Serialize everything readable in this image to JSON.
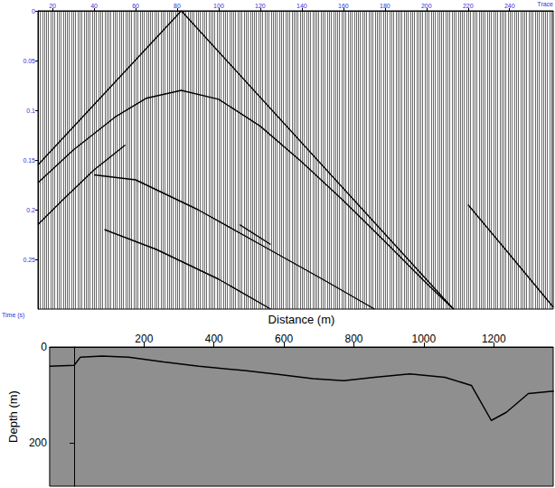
{
  "chart_data": [
    {
      "type": "line",
      "x_label": "Trace",
      "y_label": "Time (s)",
      "xlim": [
        13,
        261
      ],
      "xticks": [
        20,
        40,
        60,
        80,
        100,
        120,
        140,
        160,
        180,
        200,
        220,
        240
      ],
      "ylim": [
        0.3,
        0
      ],
      "yticks": [
        0,
        0.05,
        0.1,
        0.15,
        0.2,
        0.25
      ],
      "series": [
        {
          "color": "#000000",
          "x": [
            13,
            82,
            213
          ],
          "values": [
            0.155,
            0,
            0.3
          ]
        },
        {
          "color": "#000000",
          "x": [
            13,
            30,
            50,
            65,
            82,
            100,
            120,
            140,
            160,
            180,
            200,
            213
          ],
          "values": [
            0.173,
            0.14,
            0.107,
            0.088,
            0.08,
            0.089,
            0.116,
            0.152,
            0.191,
            0.232,
            0.274,
            0.3
          ]
        },
        {
          "color": "#000000",
          "x": [
            13,
            25,
            40,
            55
          ],
          "values": [
            0.215,
            0.19,
            0.16,
            0.135
          ]
        },
        {
          "color": "#000000",
          "x": [
            40,
            60,
            90,
            120,
            150,
            175
          ],
          "values": [
            0.165,
            0.17,
            0.2,
            0.235,
            0.27,
            0.3
          ]
        },
        {
          "color": "#000000",
          "x": [
            45,
            70,
            100,
            125
          ],
          "values": [
            0.22,
            0.24,
            0.27,
            0.3
          ]
        },
        {
          "color": "#000000",
          "x": [
            110,
            125
          ],
          "values": [
            0.215,
            0.235
          ]
        },
        {
          "color": "#000000",
          "x": [
            220,
            240,
            261
          ],
          "values": [
            0.195,
            0.245,
            0.298
          ]
        }
      ]
    },
    {
      "type": "line",
      "x_label": "Distance (m)",
      "y_label": "Depth (m)",
      "xlim": [
        -70,
        1370
      ],
      "xticks": [
        200,
        400,
        600,
        800,
        1000,
        1200
      ],
      "ylim": [
        290,
        0
      ],
      "yticks": [
        0,
        200
      ],
      "series": [
        {
          "color": "#000000",
          "x": [
            -70,
            0,
            18,
            80,
            156,
            256,
            357,
            487,
            583,
            683,
            771,
            859,
            960,
            1060,
            1136,
            1193,
            1236,
            1299,
            1372
          ],
          "values": [
            40,
            38,
            21,
            19,
            21,
            31,
            40,
            49,
            57,
            66,
            70,
            63,
            56,
            63,
            80,
            153,
            136,
            97,
            92
          ]
        }
      ]
    }
  ]
}
